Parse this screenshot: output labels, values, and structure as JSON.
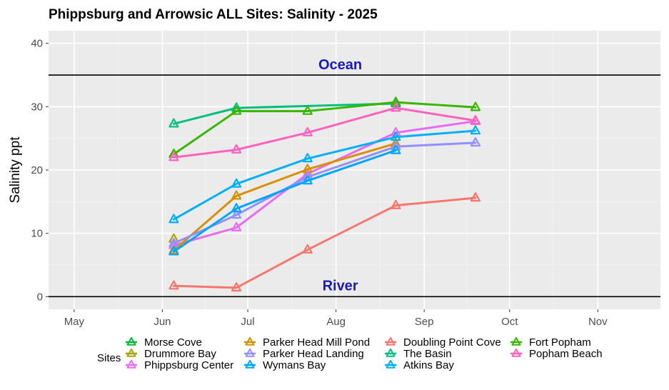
{
  "chart_data": {
    "type": "line",
    "title": "Phippsburg  and Arrowsic ALL Sites: Salinity - 2025",
    "xlabel": "",
    "ylabel": "Salinity ppt",
    "ylim": [
      -2,
      42
    ],
    "yticks": [
      0,
      10,
      20,
      30,
      40
    ],
    "x_axis": {
      "unit": "day-of-year",
      "range": [
        112,
        327
      ],
      "ticks": [
        {
          "label": "May",
          "day": 121
        },
        {
          "label": "Jun",
          "day": 152
        },
        {
          "label": "Jul",
          "day": 182
        },
        {
          "label": "Aug",
          "day": 213
        },
        {
          "label": "Sep",
          "day": 244
        },
        {
          "label": "Oct",
          "day": 274
        },
        {
          "label": "Nov",
          "day": 305
        }
      ],
      "grid": true
    },
    "reference_lines": [
      {
        "label": "Ocean",
        "value": 35
      },
      {
        "label": "River",
        "value": 0
      }
    ],
    "legend_title": "Sites",
    "series": [
      {
        "name": "Morse Cove",
        "color": "#00BA38",
        "x": [],
        "values": []
      },
      {
        "name": "Drummore Bay",
        "color": "#A3A500",
        "x": [
          156
        ],
        "values": [
          9.1
        ]
      },
      {
        "name": "Phippsburg Center",
        "color": "#E76BF3",
        "x": [
          156,
          178,
          203,
          234,
          262
        ],
        "values": [
          8.1,
          10.9,
          19.4,
          25.9,
          27.7
        ]
      },
      {
        "name": "Parker Head Mill Pond",
        "color": "#D89000",
        "x": [
          156,
          178,
          203,
          234
        ],
        "values": [
          7.3,
          15.9,
          20.1,
          24.2
        ]
      },
      {
        "name": "Parker Head Landing",
        "color": "#9590FF",
        "x": [
          156,
          178,
          203,
          234,
          262
        ],
        "values": [
          8.4,
          12.9,
          18.9,
          23.7,
          24.3
        ]
      },
      {
        "name": "Wymans Bay",
        "color": "#00A5FF",
        "x": [
          156,
          178,
          203,
          234
        ],
        "values": [
          7.1,
          13.9,
          18.3,
          23.1
        ]
      },
      {
        "name": "Doubling Point Cove",
        "color": "#F8766D",
        "x": [
          156,
          178,
          203,
          234,
          262
        ],
        "values": [
          1.7,
          1.4,
          7.4,
          14.4,
          15.6
        ]
      },
      {
        "name": "The Basin",
        "color": "#00BF7D",
        "x": [
          156,
          178,
          234
        ],
        "values": [
          27.3,
          29.8,
          30.5
        ]
      },
      {
        "name": "Atkins Bay",
        "color": "#00B0F6",
        "x": [
          156,
          178,
          203,
          234,
          262
        ],
        "values": [
          12.2,
          17.8,
          21.8,
          25.2,
          26.2
        ]
      },
      {
        "name": "Fort Popham",
        "color": "#39B600",
        "x": [
          156,
          178,
          203,
          234,
          262
        ],
        "values": [
          22.5,
          29.3,
          29.3,
          30.7,
          29.9
        ]
      },
      {
        "name": "Popham Beach",
        "color": "#FF62BC",
        "x": [
          156,
          178,
          203,
          234,
          262
        ],
        "values": [
          22.0,
          23.2,
          25.9,
          29.8,
          27.8
        ]
      }
    ],
    "legend_layout": [
      [
        "Morse Cove",
        "Drummore Bay",
        "Phippsburg Center"
      ],
      [
        "Parker Head Mill Pond",
        "Parker Head Landing",
        "Wymans Bay"
      ],
      [
        "Doubling Point Cove",
        "The Basin",
        "Atkins Bay"
      ],
      [
        "Fort Popham",
        "Popham Beach"
      ]
    ],
    "legend_placement": "bottom"
  }
}
